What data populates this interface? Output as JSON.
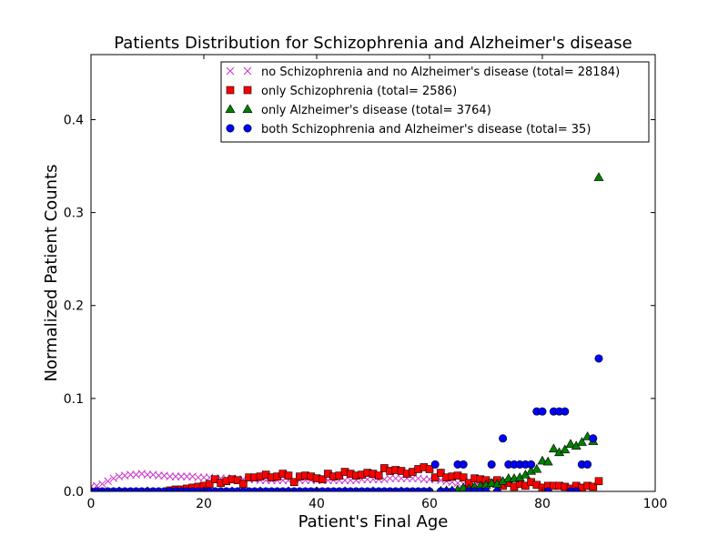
{
  "chart_data": {
    "type": "scatter",
    "title": "Patients Distribution for Schizophrenia and Alzheimer's disease",
    "xlabel": "Patient's Final Age",
    "ylabel": "Normalized Patient Counts",
    "xlim": [
      0,
      100
    ],
    "ylim": [
      0,
      0.47
    ],
    "xticks": [
      0,
      20,
      40,
      60,
      80,
      100
    ],
    "xtick_labels": [
      "0",
      "20",
      "40",
      "60",
      "80",
      "100"
    ],
    "yticks": [
      0.0,
      0.1,
      0.2,
      0.3,
      0.4
    ],
    "ytick_labels": [
      "0.0",
      "0.1",
      "0.2",
      "0.3",
      "0.4"
    ],
    "grid": false,
    "legend_position": "top-right",
    "series": [
      {
        "name": "no Schizophrenia and no Alzheimer's disease (total= 28184)",
        "marker": "x",
        "color": "#cc33cc",
        "x": [
          0,
          1,
          2,
          3,
          4,
          5,
          6,
          7,
          8,
          9,
          10,
          11,
          12,
          13,
          14,
          15,
          16,
          17,
          18,
          19,
          20,
          21,
          22,
          23,
          24,
          25,
          26,
          27,
          28,
          29,
          30,
          31,
          32,
          33,
          34,
          35,
          36,
          37,
          38,
          39,
          40,
          41,
          42,
          43,
          44,
          45,
          46,
          47,
          48,
          49,
          50,
          51,
          52,
          53,
          54,
          55,
          56,
          57,
          58,
          59,
          60,
          61,
          62,
          63,
          64,
          65,
          66,
          67,
          68,
          69,
          70
        ],
        "y": [
          0.005,
          0.006,
          0.008,
          0.011,
          0.014,
          0.016,
          0.017,
          0.018,
          0.018,
          0.019,
          0.018,
          0.018,
          0.017,
          0.017,
          0.016,
          0.016,
          0.016,
          0.016,
          0.016,
          0.015,
          0.015,
          0.015,
          0.014,
          0.014,
          0.014,
          0.014,
          0.013,
          0.013,
          0.013,
          0.013,
          0.012,
          0.012,
          0.012,
          0.012,
          0.012,
          0.012,
          0.012,
          0.012,
          0.012,
          0.012,
          0.012,
          0.012,
          0.012,
          0.012,
          0.012,
          0.012,
          0.012,
          0.012,
          0.013,
          0.013,
          0.013,
          0.013,
          0.013,
          0.014,
          0.014,
          0.014,
          0.014,
          0.014,
          0.014,
          0.013,
          0.013,
          0.013,
          0.012,
          0.011,
          0.01,
          0.009,
          0.008,
          0.007,
          0.006,
          0.005,
          0.004
        ]
      },
      {
        "name": "only Schizophrenia (total= 2586)",
        "marker": "s",
        "color": "#ff0000",
        "x": [
          14,
          15,
          16,
          17,
          18,
          19,
          20,
          21,
          22,
          23,
          24,
          25,
          26,
          27,
          28,
          29,
          30,
          31,
          32,
          33,
          34,
          35,
          36,
          37,
          38,
          39,
          40,
          41,
          42,
          43,
          44,
          45,
          46,
          47,
          48,
          49,
          50,
          51,
          52,
          53,
          54,
          55,
          56,
          57,
          58,
          59,
          60,
          61,
          62,
          63,
          64,
          65,
          66,
          67,
          68,
          69,
          70,
          71,
          72,
          73,
          74,
          75,
          76,
          77,
          78,
          79,
          80,
          81,
          82,
          83,
          84,
          85,
          86,
          87,
          88,
          89,
          90
        ],
        "y": [
          0.001,
          0.002,
          0.002,
          0.003,
          0.004,
          0.005,
          0.006,
          0.008,
          0.013,
          0.009,
          0.011,
          0.013,
          0.012,
          0.008,
          0.015,
          0.015,
          0.016,
          0.018,
          0.015,
          0.016,
          0.019,
          0.017,
          0.01,
          0.016,
          0.017,
          0.016,
          0.014,
          0.013,
          0.019,
          0.016,
          0.017,
          0.021,
          0.019,
          0.017,
          0.018,
          0.02,
          0.019,
          0.017,
          0.025,
          0.022,
          0.023,
          0.022,
          0.019,
          0.021,
          0.024,
          0.026,
          0.024,
          0.015,
          0.02,
          0.015,
          0.016,
          0.017,
          0.015,
          0.009,
          0.014,
          0.013,
          0.012,
          0.009,
          0.012,
          0.006,
          0.009,
          0.005,
          0.008,
          0.006,
          0.01,
          0.007,
          0.004,
          0.006,
          0.006,
          0.006,
          0.005,
          0.003,
          0.006,
          0.004,
          0.006,
          0.005,
          0.011
        ]
      },
      {
        "name": "only Alzheimer's disease (total= 3764)",
        "marker": "^",
        "color": "#008000",
        "x": [
          0,
          5,
          10,
          15,
          20,
          25,
          30,
          35,
          40,
          45,
          50,
          55,
          60,
          62,
          63,
          64,
          65,
          66,
          67,
          68,
          69,
          70,
          71,
          72,
          73,
          74,
          75,
          76,
          77,
          78,
          79,
          80,
          81,
          82,
          83,
          84,
          85,
          86,
          87,
          88,
          89,
          90
        ],
        "y": [
          0,
          0,
          0,
          0,
          0,
          0,
          0,
          0,
          0,
          0,
          0,
          0,
          0,
          0.0005,
          0.001,
          0.001,
          0.002,
          0.004,
          0.003,
          0.005,
          0.006,
          0.007,
          0.009,
          0.008,
          0.011,
          0.014,
          0.014,
          0.015,
          0.018,
          0.022,
          0.024,
          0.033,
          0.032,
          0.046,
          0.042,
          0.045,
          0.051,
          0.049,
          0.053,
          0.059,
          0.054,
          0.338
        ]
      },
      {
        "name": "both Schizophrenia and Alzheimer's disease (total= 35)",
        "marker": "o",
        "color": "#0000ff",
        "x": [
          0,
          1,
          2,
          3,
          4,
          5,
          6,
          7,
          8,
          9,
          10,
          11,
          12,
          13,
          14,
          15,
          16,
          17,
          18,
          19,
          20,
          21,
          22,
          23,
          24,
          25,
          26,
          27,
          28,
          29,
          30,
          31,
          32,
          33,
          34,
          35,
          36,
          37,
          38,
          39,
          40,
          41,
          42,
          43,
          44,
          45,
          46,
          47,
          48,
          49,
          50,
          51,
          52,
          53,
          54,
          55,
          56,
          57,
          58,
          59,
          60,
          61,
          62,
          63,
          64,
          65,
          66,
          67,
          68,
          69,
          70,
          71,
          72,
          73,
          74,
          75,
          76,
          77,
          78,
          79,
          80,
          81,
          82,
          83,
          84,
          85,
          86,
          87,
          88,
          89,
          90
        ],
        "y": [
          0,
          0,
          0,
          0,
          0,
          0,
          0,
          0,
          0,
          0,
          0,
          0,
          0,
          0,
          0,
          0,
          0,
          0,
          0,
          0,
          0,
          0,
          0,
          0,
          0,
          0,
          0,
          0,
          0,
          0,
          0,
          0,
          0,
          0,
          0,
          0,
          0,
          0,
          0,
          0,
          0,
          0,
          0,
          0,
          0,
          0,
          0,
          0,
          0,
          0,
          0,
          0,
          0,
          0,
          0,
          0,
          0,
          0,
          0,
          0,
          0,
          0.029,
          0,
          0,
          0,
          0.029,
          0.029,
          0,
          0,
          0,
          0,
          0.029,
          0,
          0.057,
          0.029,
          0.029,
          0.029,
          0.029,
          0.029,
          0.086,
          0.086,
          0,
          0.086,
          0.086,
          0.086,
          0,
          0,
          0.029,
          0.029,
          0.057,
          0.143
        ]
      }
    ]
  }
}
